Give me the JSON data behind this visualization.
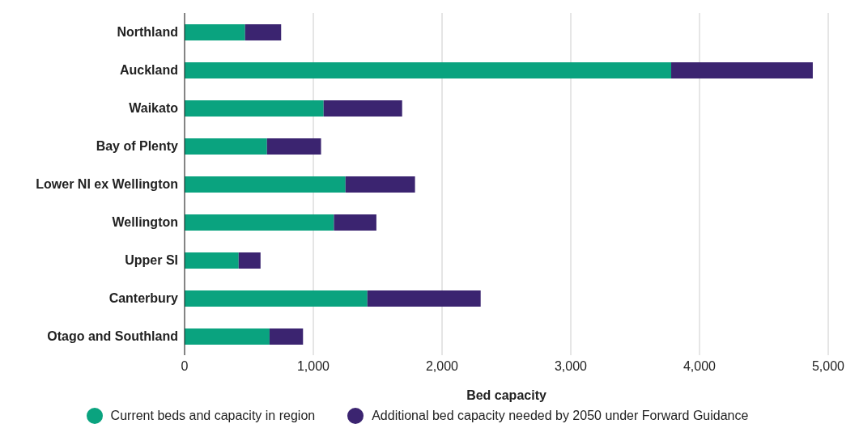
{
  "chart_data": {
    "type": "bar",
    "orientation": "horizontal",
    "stacked": true,
    "xlabel": "Bed capacity",
    "categories": [
      "Northland",
      "Auckland",
      "Waikato",
      "Bay of Plenty",
      "Lower NI ex Wellington",
      "Wellington",
      "Upper SI",
      "Canterbury",
      "Otago and Southland"
    ],
    "series": [
      {
        "name": "Current beds and capacity in region",
        "color": "#0aa37f",
        "values": [
          470,
          3780,
          1080,
          640,
          1250,
          1160,
          420,
          1420,
          660
        ]
      },
      {
        "name": "Additional bed capacity needed by 2050 under Forward Guidance",
        "color": "#3b2470",
        "values": [
          280,
          1100,
          610,
          420,
          540,
          330,
          170,
          880,
          260
        ]
      }
    ],
    "xlim": [
      0,
      5000
    ],
    "xticks": [
      {
        "value": 0,
        "label": "0"
      },
      {
        "value": 1000,
        "label": "1,000"
      },
      {
        "value": 2000,
        "label": "2,000"
      },
      {
        "value": 3000,
        "label": "3,000"
      },
      {
        "value": 4000,
        "label": "4,000"
      },
      {
        "value": 5000,
        "label": "5,000"
      }
    ],
    "grid": "x",
    "legend": "bottom"
  }
}
